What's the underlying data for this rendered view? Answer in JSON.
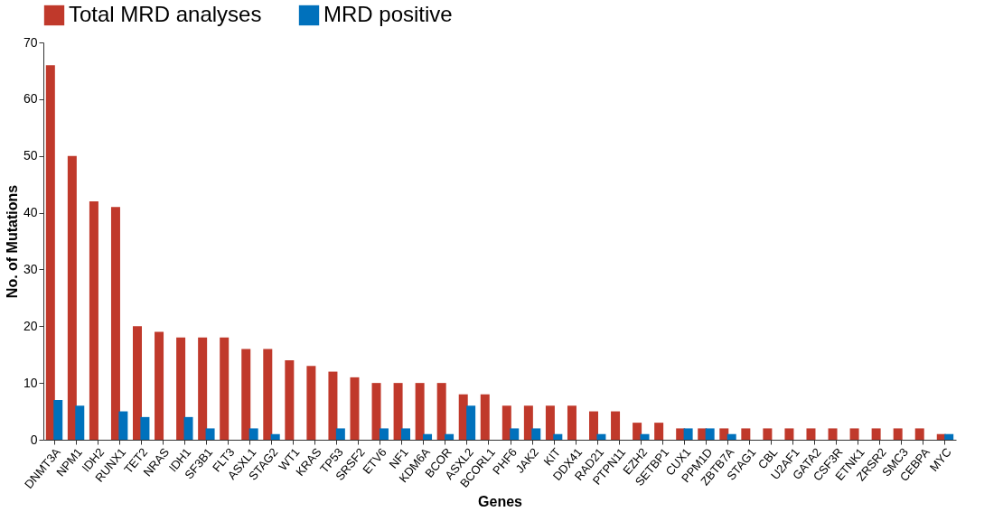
{
  "chart_data": {
    "type": "bar",
    "xlabel": "Genes",
    "ylabel": "No. of Mutations",
    "categories": [
      "DNMT3A",
      "NPM1",
      "IDH2",
      "RUNX1",
      "TET2",
      "NRAS",
      "IDH1",
      "SF3B1",
      "FLT3",
      "ASXL1",
      "STAG2",
      "WT1",
      "KRAS",
      "TP53",
      "SRSF2",
      "ETV6",
      "NF1",
      "KDM6A",
      "BCOR",
      "ASXL2",
      "BCORL1",
      "PHF6",
      "JAK2",
      "KIT",
      "DDX41",
      "RAD21",
      "PTPN11",
      "EZH2",
      "SETBP1",
      "CUX1",
      "PPM1D",
      "ZBTB7A",
      "STAG1",
      "CBL",
      "U2AF1",
      "GATA2",
      "CSF3R",
      "ETNK1",
      "ZRSR2",
      "SMC3",
      "CEBPA",
      "MYC"
    ],
    "series": [
      {
        "name": "Total MRD analyses",
        "color": "#c0392b",
        "values": [
          66,
          50,
          42,
          41,
          20,
          19,
          18,
          18,
          18,
          16,
          16,
          14,
          13,
          12,
          11,
          10,
          10,
          10,
          10,
          8,
          8,
          6,
          6,
          6,
          6,
          5,
          5,
          3,
          3,
          2,
          2,
          2,
          2,
          2,
          2,
          2,
          2,
          2,
          2,
          2,
          2,
          1
        ]
      },
      {
        "name": "MRD positive",
        "color": "#0071bc",
        "values": [
          7,
          6,
          0,
          5,
          4,
          0,
          4,
          2,
          0,
          2,
          1,
          0,
          0,
          2,
          0,
          2,
          2,
          1,
          1,
          6,
          0,
          2,
          2,
          1,
          0,
          1,
          0,
          1,
          0,
          2,
          2,
          1,
          0,
          0,
          0,
          0,
          0,
          0,
          0,
          0,
          0,
          1
        ]
      }
    ],
    "ylim": [
      0,
      70
    ],
    "yticks": [
      0,
      10,
      20,
      30,
      40,
      50,
      60,
      70
    ],
    "grid": false,
    "legend": "top"
  }
}
